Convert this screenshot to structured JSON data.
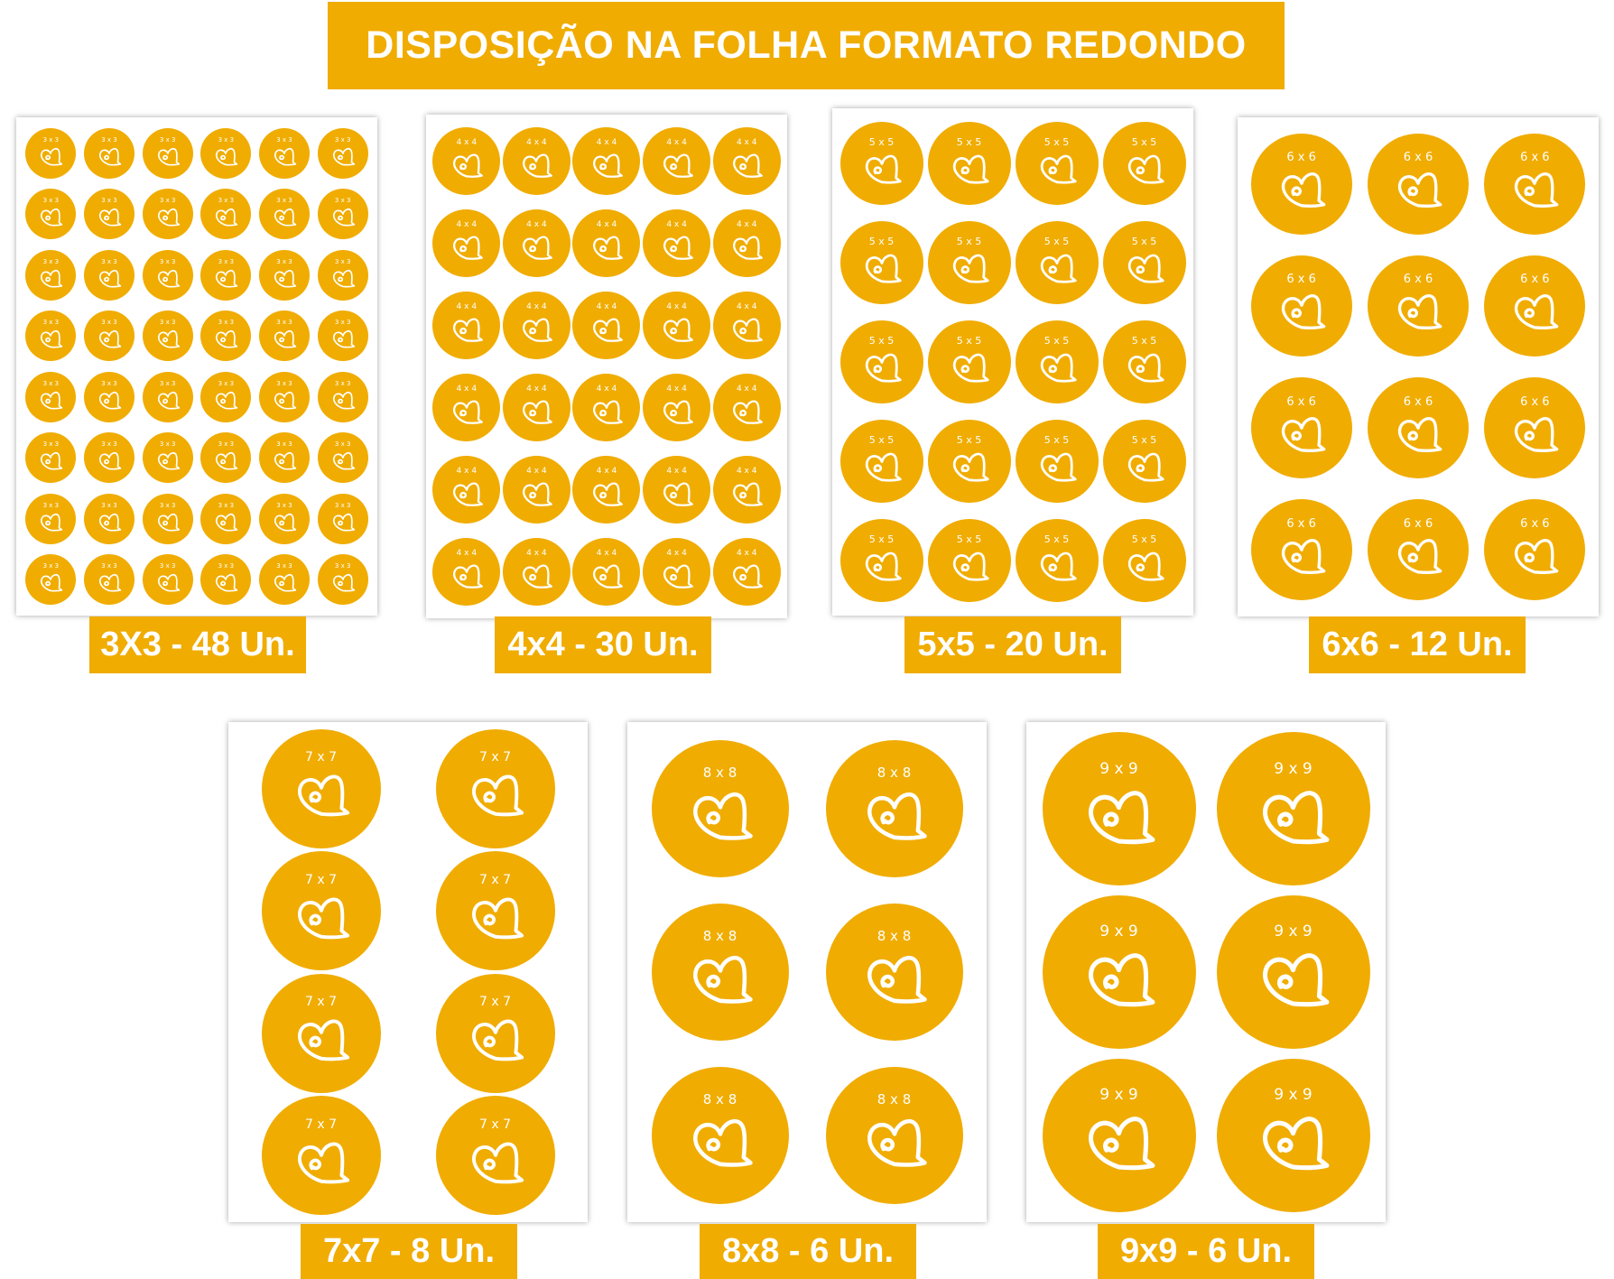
{
  "title": "DISPOSIÇÃO NA FOLHA FORMATO REDONDO",
  "colors": {
    "accent": "#f0ac00",
    "sheet": "#ffffff",
    "text": "#ffffff"
  },
  "icon": "heart-icon",
  "sheets": [
    {
      "sticker_label": "3 x 3",
      "caption": "3X3 - 48 Un.",
      "columns": 6,
      "rows": 8,
      "count": 48
    },
    {
      "sticker_label": "4 x 4",
      "caption": "4x4 - 30 Un.",
      "columns": 5,
      "rows": 6,
      "count": 30
    },
    {
      "sticker_label": "5 x 5",
      "caption": "5x5 - 20 Un.",
      "columns": 4,
      "rows": 5,
      "count": 20
    },
    {
      "sticker_label": "6 x 6",
      "caption": "6x6 - 12 Un.",
      "columns": 3,
      "rows": 4,
      "count": 12
    },
    {
      "sticker_label": "7 x 7",
      "caption": "7x7 - 8 Un.",
      "columns": 2,
      "rows": 4,
      "count": 8
    },
    {
      "sticker_label": "8 x 8",
      "caption": "8x8 - 6 Un.",
      "columns": 2,
      "rows": 3,
      "count": 6
    },
    {
      "sticker_label": "9 x 9",
      "caption": "9x9 - 6 Un.",
      "columns": 2,
      "rows": 3,
      "count": 6
    }
  ]
}
